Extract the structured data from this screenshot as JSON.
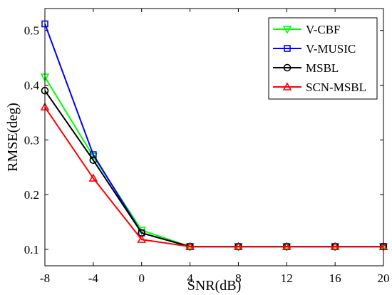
{
  "chart_data": {
    "type": "line",
    "title": "",
    "xlabel": "SNR(dB)",
    "ylabel": "RMSE(deg)",
    "x": [
      -8,
      -4,
      0,
      4,
      8,
      12,
      16,
      20
    ],
    "xticks": [
      "-8",
      "-4",
      "0",
      "4",
      "8",
      "12",
      "16",
      "20"
    ],
    "yticks": [
      "0.1",
      "0.2",
      "0.3",
      "0.4",
      "0.5"
    ],
    "xlim": [
      -8,
      20
    ],
    "ylim": [
      0.07,
      0.54
    ],
    "grid": false,
    "legend_position": "top-right",
    "series": [
      {
        "name": "V-CBF",
        "color": "#00ff00",
        "marker": "triangle-down",
        "values": [
          0.415,
          0.27,
          0.135,
          0.105,
          0.105,
          0.105,
          0.105,
          0.105
        ]
      },
      {
        "name": "V-MUSIC",
        "color": "#0000ff",
        "marker": "square",
        "values": [
          0.512,
          0.273,
          0.13,
          0.105,
          0.105,
          0.105,
          0.105,
          0.105
        ]
      },
      {
        "name": "MSBL",
        "color": "#000000",
        "marker": "circle",
        "values": [
          0.39,
          0.263,
          0.13,
          0.105,
          0.105,
          0.105,
          0.105,
          0.105
        ]
      },
      {
        "name": "SCN-MSBL",
        "color": "#ff0000",
        "marker": "triangle-up",
        "values": [
          0.36,
          0.23,
          0.118,
          0.105,
          0.105,
          0.105,
          0.105,
          0.105
        ]
      }
    ]
  }
}
